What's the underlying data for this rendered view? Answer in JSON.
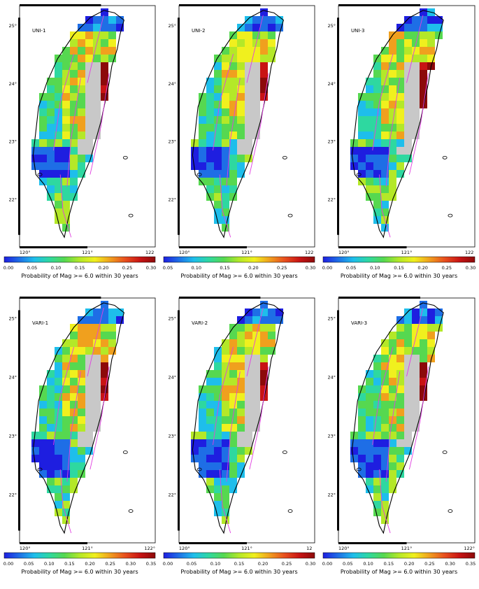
{
  "figure": {
    "panels": [
      {
        "label": "UNI-1",
        "lat_ticks": [
          "25°",
          "24°",
          "23°",
          "22°"
        ],
        "lon_ticks": [
          "120°",
          "121°",
          "122"
        ],
        "colorbar": {
          "ticks": [
            "0.00",
            "0.05",
            "0.10",
            "0.15",
            "0.20",
            "0.25",
            "0.30"
          ],
          "title": "Probability of Mag >= 6.0 within 30 years"
        }
      },
      {
        "label": "UNI-2",
        "lat_ticks": [
          "25°",
          "24°",
          "23°",
          "22°"
        ],
        "lon_ticks": [
          "120°",
          "121°",
          "122"
        ],
        "colorbar": {
          "ticks": [
            "0.05",
            "0.10",
            "0.15",
            "0.20",
            "0.25",
            "0.30"
          ],
          "title": "Probability of Mag >= 6.0 within 30 years"
        }
      },
      {
        "label": "UNI-3",
        "lat_ticks": [
          "25°",
          "24°",
          "23°",
          "22°"
        ],
        "lon_ticks": [
          "120°",
          "121°",
          "122"
        ],
        "colorbar": {
          "ticks": [
            "0.00",
            "0.05",
            "0.10",
            "0.15",
            "0.20",
            "0.25",
            "0.30"
          ],
          "title": "Probability of Mag >= 6.0 within 30 years"
        }
      },
      {
        "label": "VARI-1",
        "lat_ticks": [
          "25°",
          "24°",
          "23°",
          "22°"
        ],
        "lon_ticks": [
          "120°",
          "121°",
          "122°"
        ],
        "colorbar": {
          "ticks": [
            "0.00",
            "0.05",
            "0.10",
            "0.15",
            "0.20",
            "0.25",
            "0.30",
            "0.35"
          ],
          "title": "Probability of Mag >= 6.0 within 30 years"
        }
      },
      {
        "label": "VARI-2",
        "lat_ticks": [
          "25°",
          "24°",
          "23°",
          "22°"
        ],
        "lon_ticks": [
          "120°",
          "121°",
          "12"
        ],
        "colorbar": {
          "ticks": [
            "0.00",
            "0.05",
            "0.10",
            "0.15",
            "0.20",
            "0.25",
            "0.30"
          ],
          "title": "Probability of Mag >= 6.0 within 30 years"
        }
      },
      {
        "label": "VARI-3",
        "lat_ticks": [
          "25°",
          "24°",
          "23°",
          "22°"
        ],
        "lon_ticks": [
          "120°",
          "121°",
          "122°"
        ],
        "colorbar": {
          "ticks": [
            "0.00",
            "0.05",
            "0.10",
            "0.15",
            "0.20",
            "0.25",
            "0.30",
            "0.35"
          ],
          "title": "Probability of Mag >= 6.0 within 30 years"
        }
      }
    ],
    "colors": {
      "colormap": [
        "#1e1ee0",
        "#1e6ee6",
        "#1ebeeb",
        "#2ed8a0",
        "#56d850",
        "#b4e828",
        "#f0f01e",
        "#f0a01e",
        "#e8501e",
        "#c81414",
        "#8c0a0a"
      ],
      "mountain_gray": "#c8c8c8",
      "fault_magenta": "#e040e0",
      "coast_black": "#000000"
    }
  }
}
